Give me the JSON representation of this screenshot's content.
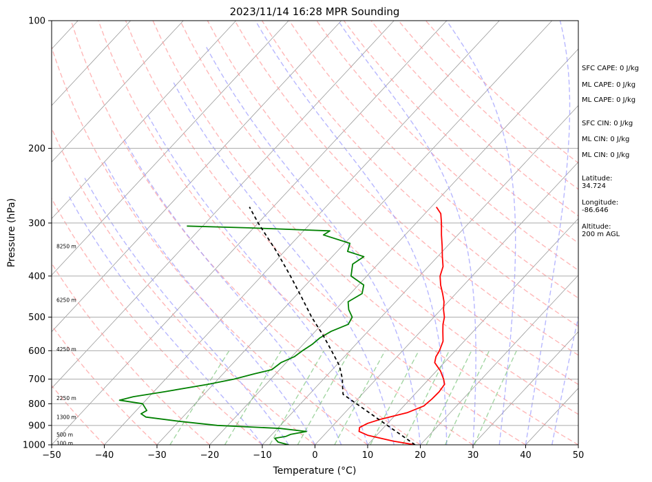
{
  "chart_data": {
    "type": "line",
    "subtype": "skew-T log-P sounding",
    "title": "2023/11/14 16:28 MPR Sounding",
    "xlabel": "Temperature (°C)",
    "ylabel": "Pressure (hPa)",
    "xlim": [
      -50,
      50
    ],
    "ylim": [
      1000,
      100
    ],
    "y_scale": "log",
    "skew_deg_per_decade": 75,
    "x_ticks": [
      -50,
      -40,
      -30,
      -20,
      -10,
      0,
      10,
      20,
      30,
      40,
      50
    ],
    "x_tick_labels": [
      "−50",
      "−40",
      "−30",
      "−20",
      "−10",
      "0",
      "10",
      "20",
      "30",
      "40",
      "50"
    ],
    "y_ticks": [
      1000,
      900,
      800,
      700,
      600,
      500,
      400,
      300,
      200,
      100
    ],
    "y_tick_labels": [
      "1000",
      "900",
      "800",
      "700",
      "600",
      "500",
      "400",
      "300",
      "200",
      "100"
    ],
    "grid": true,
    "series": [
      {
        "key": "temperature",
        "color": "#ff0000",
        "points": [
          [
            1000,
            19
          ],
          [
            980,
            14.2
          ],
          [
            950,
            8.4
          ],
          [
            930,
            6.0
          ],
          [
            910,
            5.4
          ],
          [
            890,
            6.2
          ],
          [
            870,
            8.0
          ],
          [
            840,
            11.8
          ],
          [
            810,
            13.8
          ],
          [
            780,
            14.1
          ],
          [
            750,
            14.2
          ],
          [
            720,
            13.9
          ],
          [
            700,
            12.8
          ],
          [
            670,
            10.8
          ],
          [
            640,
            8.2
          ],
          [
            620,
            7.4
          ],
          [
            600,
            7.0
          ],
          [
            570,
            6.0
          ],
          [
            540,
            4.2
          ],
          [
            520,
            3.0
          ],
          [
            500,
            2.0
          ],
          [
            480,
            0.5
          ],
          [
            460,
            -0.8
          ],
          [
            440,
            -2.5
          ],
          [
            420,
            -4.4
          ],
          [
            400,
            -6.1
          ],
          [
            380,
            -7.2
          ],
          [
            360,
            -9.1
          ],
          [
            340,
            -11.0
          ],
          [
            320,
            -13.1
          ],
          [
            300,
            -15.2
          ],
          [
            285,
            -17.0
          ],
          [
            275,
            -19.0
          ]
        ]
      },
      {
        "key": "dewpoint",
        "color": "#008000",
        "points": [
          [
            1000,
            -5
          ],
          [
            985,
            -7.5
          ],
          [
            965,
            -8.8
          ],
          [
            955,
            -7.0
          ],
          [
            945,
            -6.5
          ],
          [
            930,
            -4.0
          ],
          [
            915,
            -9.5
          ],
          [
            900,
            -22.0
          ],
          [
            880,
            -30.0
          ],
          [
            860,
            -37.0
          ],
          [
            845,
            -38.5
          ],
          [
            830,
            -38.0
          ],
          [
            800,
            -40.0
          ],
          [
            785,
            -45.0
          ],
          [
            770,
            -43.0
          ],
          [
            750,
            -38.0
          ],
          [
            720,
            -31.0
          ],
          [
            700,
            -27.0
          ],
          [
            680,
            -24.0
          ],
          [
            665,
            -21.5
          ],
          [
            640,
            -21.0
          ],
          [
            620,
            -19.5
          ],
          [
            600,
            -19.0
          ],
          [
            580,
            -18.3
          ],
          [
            560,
            -18.0
          ],
          [
            540,
            -17.0
          ],
          [
            520,
            -15.0
          ],
          [
            500,
            -15.5
          ],
          [
            480,
            -17.5
          ],
          [
            460,
            -19.0
          ],
          [
            440,
            -17.8
          ],
          [
            420,
            -19.0
          ],
          [
            400,
            -23.0
          ],
          [
            375,
            -24.8
          ],
          [
            360,
            -24.0
          ],
          [
            350,
            -28.0
          ],
          [
            335,
            -29.0
          ],
          [
            320,
            -35.5
          ],
          [
            313,
            -35.0
          ],
          [
            308,
            -51.0
          ],
          [
            305,
            -63.0
          ]
        ]
      },
      {
        "key": "parcel",
        "color": "#000000",
        "dash": "dashed",
        "points": [
          [
            1000,
            19
          ],
          [
            950,
            14.8
          ],
          [
            900,
            10.3
          ],
          [
            850,
            5.6
          ],
          [
            800,
            0.6
          ],
          [
            760,
            -3.6
          ],
          [
            720,
            -5.5
          ],
          [
            700,
            -6.4
          ],
          [
            650,
            -9.4
          ],
          [
            600,
            -13.5
          ],
          [
            550,
            -18.0
          ],
          [
            500,
            -23.2
          ],
          [
            450,
            -28.5
          ],
          [
            400,
            -34.5
          ],
          [
            350,
            -41.5
          ],
          [
            300,
            -50.0
          ],
          [
            275,
            -54.5
          ]
        ]
      }
    ],
    "background_lines": {
      "dry_adiabats_color": "#ff9999",
      "moist_adiabats_color": "#9999ff",
      "mixing_ratio_color": "#66bb66",
      "isotherms_color": "#999999"
    },
    "height_labels": [
      {
        "text": "100 m",
        "p": 990
      },
      {
        "text": "500 m",
        "p": 945
      },
      {
        "text": "1300 m",
        "p": 860
      },
      {
        "text": "2250 m",
        "p": 775
      },
      {
        "text": "4250 m",
        "p": 595
      },
      {
        "text": "6250 m",
        "p": 455
      },
      {
        "text": "8250 m",
        "p": 340
      }
    ]
  },
  "info_panel": {
    "sfc_cape": "SFC CAPE: 0 J/kg",
    "ml_cape": "ML CAPE: 0 J/kg",
    "mu_cape": "ML CAPE: 0 J/kg",
    "sfc_cin": "SFC CIN: 0 J/kg",
    "ml_cin": "ML CIN: 0 J/kg",
    "mu_cin": "ML CIN: 0 J/kg",
    "latitude_label": "Latitude:",
    "latitude_value": "34.724",
    "longitude_label": "Longitude:",
    "longitude_value": "-86.646",
    "altitude_label": "Altitude:",
    "altitude_value": "200 m AGL"
  }
}
